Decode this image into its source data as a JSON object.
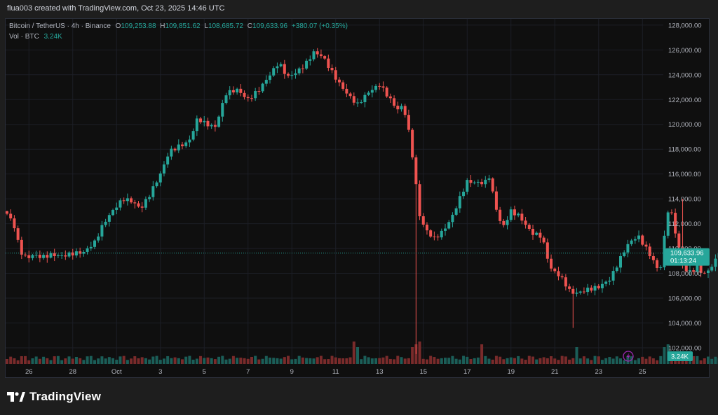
{
  "header": {
    "credit": "flua003 created with TradingView.com, Oct 23, 2025 14:46 UTC"
  },
  "legend": {
    "symbol": "Bitcoin / TetherUS · 4h · Binance",
    "o_label": "O",
    "o": "109,253.88",
    "h_label": "H",
    "h": "109,851.62",
    "l_label": "L",
    "l": "108,685.72",
    "c_label": "C",
    "c": "109,633.96",
    "change": "+380.07 (+0.35%)",
    "vol_label": "Vol · BTC",
    "vol": "3.24K"
  },
  "colors": {
    "up": "#26a69a",
    "down": "#ef5350",
    "vol_up": "#1b5e58",
    "vol_down": "#7a2b2b",
    "bg": "#0f0f0f",
    "grid": "#1c1f26",
    "price_tag": "#26a69a"
  },
  "brand": {
    "name": "TradingView",
    "icon": "tradingview-logo-icon"
  },
  "chart_data": {
    "type": "candlestick",
    "timeframe": "4h",
    "x_ticks": [
      "26",
      "28",
      "Oct",
      "3",
      "5",
      "7",
      "9",
      "11",
      "13",
      "15",
      "17",
      "19",
      "21",
      "23",
      "25"
    ],
    "y_ticks": [
      "102,000.00",
      "104,000.00",
      "106,000.00",
      "108,000.00",
      "110,000.00",
      "112,000.00",
      "114,000.00",
      "116,000.00",
      "118,000.00",
      "120,000.00",
      "122,000.00",
      "124,000.00",
      "126,000.00",
      "128,000.00"
    ],
    "ylim": [
      100700,
      128500
    ],
    "xlim_days": [
      "Sep 25",
      "Oct 25"
    ],
    "grid": true,
    "last_price_label": "109,633.96",
    "countdown_label": "01:13:24",
    "volume_label": "3.24K",
    "close_path_days_from_sep25": [
      [
        0.0,
        112800
      ],
      [
        0.3,
        112000
      ],
      [
        0.6,
        109800
      ],
      [
        0.9,
        109200
      ],
      [
        1.2,
        109500
      ],
      [
        1.6,
        109300
      ],
      [
        2.0,
        109500
      ],
      [
        2.5,
        109400
      ],
      [
        3.0,
        109600
      ],
      [
        3.5,
        109700
      ],
      [
        4.0,
        110500
      ],
      [
        4.4,
        112000
      ],
      [
        4.8,
        113000
      ],
      [
        5.3,
        114000
      ],
      [
        5.7,
        113800
      ],
      [
        6.1,
        113200
      ],
      [
        6.5,
        114300
      ],
      [
        7.0,
        116000
      ],
      [
        7.4,
        117800
      ],
      [
        7.8,
        118200
      ],
      [
        8.3,
        118600
      ],
      [
        8.7,
        120500
      ],
      [
        9.1,
        120000
      ],
      [
        9.5,
        119800
      ],
      [
        10.0,
        122500
      ],
      [
        10.5,
        122800
      ],
      [
        11.0,
        122000
      ],
      [
        11.5,
        122800
      ],
      [
        12.0,
        124000
      ],
      [
        12.4,
        125000
      ],
      [
        12.8,
        123800
      ],
      [
        13.2,
        124200
      ],
      [
        13.6,
        124800
      ],
      [
        14.0,
        125800
      ],
      [
        14.4,
        125500
      ],
      [
        14.8,
        124300
      ],
      [
        15.2,
        123200
      ],
      [
        15.6,
        122300
      ],
      [
        16.0,
        121600
      ],
      [
        16.5,
        122600
      ],
      [
        17.0,
        123200
      ],
      [
        17.5,
        122000
      ],
      [
        17.8,
        121200
      ],
      [
        18.1,
        121500
      ],
      [
        18.4,
        118800
      ],
      [
        18.6,
        116200
      ],
      [
        18.8,
        112800
      ],
      [
        19.1,
        111500
      ],
      [
        19.5,
        110800
      ],
      [
        19.9,
        111400
      ],
      [
        20.3,
        112500
      ],
      [
        20.6,
        113800
      ],
      [
        21.0,
        115400
      ],
      [
        21.4,
        115300
      ],
      [
        21.8,
        115300
      ],
      [
        22.0,
        115800
      ],
      [
        22.3,
        113400
      ],
      [
        22.6,
        111600
      ],
      [
        23.0,
        113000
      ],
      [
        23.4,
        112600
      ],
      [
        23.7,
        111800
      ],
      [
        24.0,
        111200
      ],
      [
        24.4,
        111000
      ],
      [
        24.8,
        108400
      ],
      [
        25.1,
        108000
      ],
      [
        25.4,
        107400
      ],
      [
        25.7,
        106500
      ],
      [
        26.0,
        106400
      ],
      [
        26.5,
        106700
      ],
      [
        27.0,
        106900
      ],
      [
        27.5,
        107500
      ],
      [
        27.8,
        108500
      ],
      [
        28.1,
        109600
      ],
      [
        28.4,
        110500
      ],
      [
        28.8,
        111000
      ],
      [
        29.1,
        110200
      ],
      [
        29.5,
        109000
      ],
      [
        29.7,
        108300
      ],
      [
        29.9,
        108700
      ],
      [
        30.1,
        113100
      ],
      [
        30.3,
        113000
      ],
      [
        30.6,
        110500
      ],
      [
        30.9,
        108300
      ],
      [
        31.2,
        108100
      ],
      [
        31.5,
        108500
      ],
      [
        31.8,
        107900
      ],
      [
        32.1,
        108400
      ],
      [
        32.4,
        109250
      ],
      [
        32.6,
        109634
      ]
    ],
    "spikes_days_from_sep25": [
      {
        "day": 18.7,
        "low": 101500
      },
      {
        "day": 25.9,
        "low": 103600
      },
      {
        "day": 30.8,
        "high": 114000
      }
    ],
    "volume_spikes_days_from_sep25": [
      15.9,
      18.6,
      18.8,
      21.7,
      26.0,
      30.0,
      30.2
    ]
  }
}
